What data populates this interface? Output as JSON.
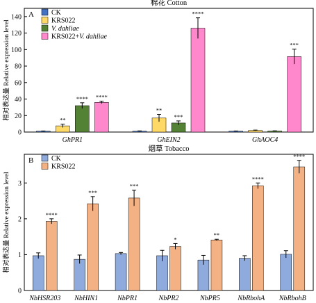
{
  "chart_data": [
    {
      "type": "bar",
      "panel_letter": "A",
      "title": "棉花 Cotton",
      "ylabel": "相对表达量 Relative expression level",
      "ylim": [
        0,
        150
      ],
      "yticks": [
        0,
        20,
        40,
        60,
        80,
        100,
        120,
        140
      ],
      "grid": false,
      "legend_position": "top-left",
      "categories": [
        "GhPR1",
        "GhEIN2",
        "GhAOC4"
      ],
      "series": [
        {
          "name": "CK",
          "color": "#4472c4",
          "values": [
            1,
            1,
            1
          ],
          "errors": [
            0.3,
            0.4,
            0.3
          ],
          "significance": [
            "",
            "",
            ""
          ]
        },
        {
          "name": "KRS022",
          "color": "#ffd966",
          "values": [
            7.5,
            17,
            2
          ],
          "errors": [
            2,
            4.5,
            0.4
          ],
          "significance": [
            "**",
            "**",
            ""
          ]
        },
        {
          "name": "V. dahliae",
          "color": "#548235",
          "values": [
            32,
            11,
            1.2
          ],
          "errors": [
            3.5,
            2.5,
            0.3
          ],
          "significance": [
            "****",
            "***",
            ""
          ]
        },
        {
          "name": "KRS022+V. dahliae",
          "color": "#ff88cc",
          "values": [
            36,
            126,
            91.5
          ],
          "errors": [
            1.5,
            12.5,
            9
          ],
          "significance": [
            "****",
            "****",
            "***"
          ]
        }
      ]
    },
    {
      "type": "bar",
      "panel_letter": "B",
      "title": "烟草 Tobacco",
      "ylabel": "相对表达量 Relative expression level",
      "ylim": [
        0,
        3.8
      ],
      "yticks": [
        0,
        1,
        2,
        3
      ],
      "grid": false,
      "legend_position": "top-left",
      "categories": [
        "NbHSR203",
        "NbHIN1",
        "NbPR1",
        "NbPR2",
        "NbPR5",
        "NbRbohA",
        "NbRbohB"
      ],
      "series": [
        {
          "name": "CK",
          "color": "#8faadc",
          "values": [
            0.97,
            0.87,
            1.03,
            0.97,
            0.85,
            0.9,
            1.01
          ],
          "errors": [
            0.08,
            0.12,
            0.03,
            0.15,
            0.13,
            0.07,
            0.1
          ],
          "significance": [
            "",
            "",
            "",
            "",
            "",
            "",
            ""
          ]
        },
        {
          "name": "KRS022",
          "color": "#f4b183",
          "values": [
            1.93,
            2.42,
            2.58,
            1.23,
            1.41,
            2.92,
            3.45
          ],
          "errors": [
            0.07,
            0.2,
            0.22,
            0.08,
            0.02,
            0.08,
            0.18
          ],
          "significance": [
            "****",
            "***",
            "***",
            "*",
            "**",
            "****",
            "****"
          ]
        }
      ]
    }
  ]
}
